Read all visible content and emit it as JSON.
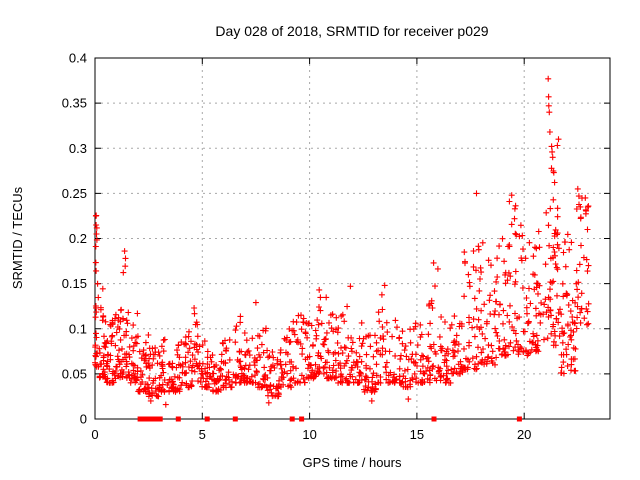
{
  "figure": {
    "title": "Day 028 of 2018, SRMTID for receiver p029",
    "xlabel": "GPS time / hours",
    "ylabel": "SRMTID / TECUs"
  },
  "colors": {
    "marker": "#ff0000",
    "frame": "#000000",
    "grid": "#a8a8a8",
    "background": "#ffffff",
    "text": "#000000"
  },
  "chart_data": {
    "type": "scatter",
    "title": "Day 028 of 2018, SRMTID for receiver p029",
    "xlabel": "GPS time / hours",
    "ylabel": "SRMTID / TECUs",
    "xlim": [
      0,
      24
    ],
    "ylim": [
      0,
      0.4
    ],
    "xticks": [
      0,
      5,
      10,
      15,
      20
    ],
    "xtick_labels": [
      "0",
      "5",
      "10",
      "15",
      "20"
    ],
    "yticks": [
      0,
      0.05,
      0.1,
      0.15,
      0.2,
      0.25,
      0.3,
      0.35,
      0.4
    ],
    "ytick_labels": [
      "0",
      "0.05",
      "0.1",
      "0.15",
      "0.2",
      "0.25",
      "0.3",
      "0.35",
      "0.4"
    ],
    "grid": "dashed-major",
    "legend": null,
    "marker": "plus",
    "marker_color": "#ff0000",
    "series_name": "SRMTID",
    "description": "Dense 30s-sampled scatter; band 0.03-0.13 TECU through the day, rising after hour 17, peak 0.377 at hour 21.1, data ends near hour 23. Squares on the axis mark zero/no-data epochs.",
    "cloud_seed": 20180128,
    "cloud_default_k": 2.2,
    "cloud_segments": [
      [
        0.0,
        0.12,
        22,
        0.05,
        0.23,
        1.4
      ],
      [
        0.12,
        0.5,
        32,
        0.045,
        0.15
      ],
      [
        0.5,
        0.9,
        34,
        0.04,
        0.11
      ],
      [
        0.9,
        1.3,
        34,
        0.045,
        0.13
      ],
      [
        1.3,
        1.6,
        24,
        0.045,
        0.17
      ],
      [
        1.6,
        2.0,
        30,
        0.04,
        0.12
      ],
      [
        2.0,
        2.5,
        34,
        0.03,
        0.095
      ],
      [
        2.5,
        3.0,
        34,
        0.025,
        0.09
      ],
      [
        3.0,
        3.5,
        30,
        0.03,
        0.09
      ],
      [
        3.5,
        4.0,
        30,
        0.03,
        0.085
      ],
      [
        4.0,
        4.5,
        30,
        0.035,
        0.1
      ],
      [
        4.5,
        4.9,
        24,
        0.04,
        0.12
      ],
      [
        4.9,
        5.4,
        30,
        0.035,
        0.09
      ],
      [
        5.4,
        5.9,
        30,
        0.03,
        0.085
      ],
      [
        5.9,
        6.4,
        30,
        0.035,
        0.09
      ],
      [
        6.4,
        6.9,
        30,
        0.04,
        0.115
      ],
      [
        6.9,
        7.5,
        34,
        0.04,
        0.125
      ],
      [
        7.5,
        8.0,
        30,
        0.035,
        0.11
      ],
      [
        8.0,
        8.6,
        34,
        0.025,
        0.085
      ],
      [
        8.6,
        9.2,
        34,
        0.035,
        0.1
      ],
      [
        9.2,
        9.8,
        30,
        0.04,
        0.115
      ],
      [
        9.8,
        10.3,
        30,
        0.045,
        0.12
      ],
      [
        10.3,
        10.8,
        30,
        0.05,
        0.14
      ],
      [
        10.8,
        11.3,
        30,
        0.045,
        0.12
      ],
      [
        11.3,
        11.9,
        34,
        0.04,
        0.125
      ],
      [
        11.9,
        12.5,
        34,
        0.04,
        0.115
      ],
      [
        12.5,
        13.1,
        34,
        0.03,
        0.1
      ],
      [
        13.1,
        13.7,
        30,
        0.04,
        0.145
      ],
      [
        13.7,
        14.3,
        30,
        0.04,
        0.115
      ],
      [
        14.3,
        14.9,
        30,
        0.035,
        0.1
      ],
      [
        14.9,
        15.5,
        30,
        0.04,
        0.11
      ],
      [
        15.5,
        16.0,
        28,
        0.04,
        0.17
      ],
      [
        16.0,
        16.6,
        34,
        0.04,
        0.115
      ],
      [
        16.6,
        17.2,
        34,
        0.05,
        0.135
      ],
      [
        17.2,
        17.8,
        34,
        0.055,
        0.19
      ],
      [
        17.8,
        18.2,
        24,
        0.06,
        0.24,
        1.8
      ],
      [
        18.2,
        18.8,
        30,
        0.06,
        0.185
      ],
      [
        18.8,
        19.3,
        30,
        0.07,
        0.21,
        1.8
      ],
      [
        19.3,
        19.7,
        24,
        0.075,
        0.245,
        1.8
      ],
      [
        19.7,
        20.3,
        34,
        0.07,
        0.215,
        1.8
      ],
      [
        20.3,
        20.9,
        34,
        0.075,
        0.22,
        1.8
      ],
      [
        20.9,
        21.7,
        34,
        0.08,
        0.21,
        1.6
      ],
      [
        21.0,
        21.6,
        22,
        0.14,
        0.3,
        1.5
      ],
      [
        21.7,
        22.4,
        40,
        0.05,
        0.135,
        1.8
      ],
      [
        21.75,
        22.35,
        12,
        0.135,
        0.205,
        1.5
      ],
      [
        22.35,
        22.75,
        22,
        0.1,
        0.26,
        1.3
      ],
      [
        22.75,
        23.05,
        14,
        0.09,
        0.25,
        1.2
      ]
    ],
    "peak_points": [
      [
        0.04,
        0.225
      ],
      [
        0.05,
        0.215
      ],
      [
        0.07,
        0.205
      ],
      [
        1.38,
        0.186
      ],
      [
        1.42,
        0.178
      ],
      [
        2.6,
        0.02
      ],
      [
        3.3,
        0.016
      ],
      [
        4.62,
        0.123
      ],
      [
        7.5,
        0.129
      ],
      [
        8.1,
        0.018
      ],
      [
        9.6,
        0.115
      ],
      [
        10.45,
        0.143
      ],
      [
        11.9,
        0.147
      ],
      [
        12.9,
        0.02
      ],
      [
        13.5,
        0.148
      ],
      [
        14.6,
        0.022
      ],
      [
        15.78,
        0.173
      ],
      [
        17.78,
        0.25
      ],
      [
        19.42,
        0.248
      ],
      [
        21.12,
        0.377
      ],
      [
        21.14,
        0.357
      ],
      [
        21.15,
        0.347
      ],
      [
        21.17,
        0.34
      ],
      [
        21.2,
        0.318
      ],
      [
        21.28,
        0.302
      ],
      [
        21.3,
        0.296
      ],
      [
        21.33,
        0.29
      ],
      [
        21.38,
        0.273
      ],
      [
        21.42,
        0.262
      ],
      [
        21.55,
        0.303
      ],
      [
        21.6,
        0.31
      ],
      [
        22.5,
        0.255
      ],
      [
        22.55,
        0.247
      ],
      [
        22.62,
        0.235
      ],
      [
        22.85,
        0.245
      ],
      [
        22.95,
        0.21
      ],
      [
        23.0,
        0.17
      ]
    ],
    "zero_marker_hours": [
      2.1,
      2.24,
      2.43,
      2.57,
      2.68,
      2.78,
      2.88,
      3.04,
      3.88,
      5.23,
      6.54,
      9.19,
      9.63,
      15.8,
      19.78
    ]
  }
}
